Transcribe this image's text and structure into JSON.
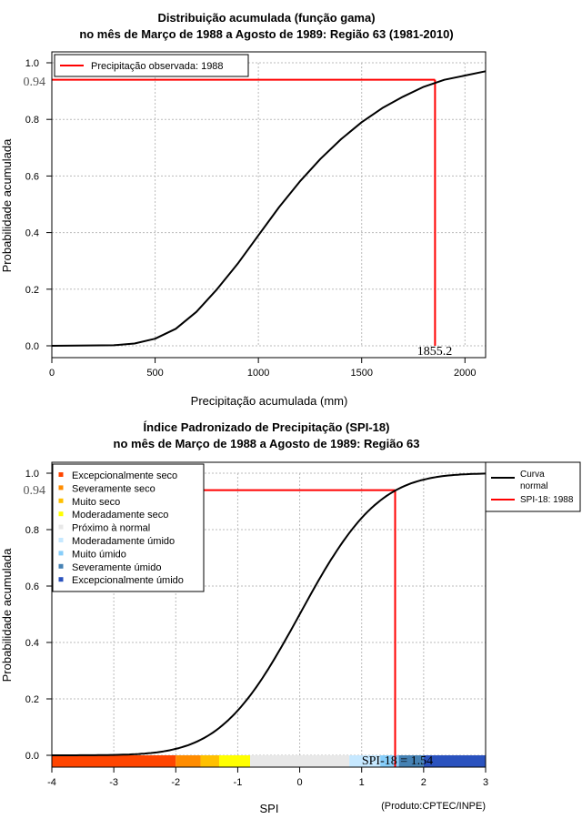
{
  "chart_data": [
    {
      "type": "line",
      "title_line1": "Distribuição acumulada (função gama)",
      "title_line2": "no mês de Março de 1988 a Agosto de 1989: Região 63 (1981-2010)",
      "xlabel": "Precipitação acumulada (mm)",
      "ylabel": "Probabilidade acumulada",
      "xlim": [
        0,
        2100
      ],
      "ylim": [
        0,
        1.0
      ],
      "xticks": [
        0,
        500,
        1000,
        1500,
        2000
      ],
      "yticks": [
        0.0,
        0.2,
        0.4,
        0.6,
        0.8,
        1.0
      ],
      "xtick_labels": [
        "0",
        "500",
        "1000",
        "1500",
        "2000"
      ],
      "ytick_labels": [
        "0.0",
        "0.2",
        "0.4",
        "0.6",
        "0.8",
        "1.0"
      ],
      "grid": true,
      "legend_position": "top-left",
      "legend_entries": [
        "Precipitação observada: 1988"
      ],
      "curve": {
        "name": "gamma-cdf",
        "x": [
          0,
          300,
          400,
          500,
          600,
          700,
          800,
          900,
          1000,
          1100,
          1200,
          1300,
          1400,
          1500,
          1600,
          1700,
          1800,
          1900,
          2000,
          2100
        ],
        "y": [
          0.0,
          0.002,
          0.008,
          0.025,
          0.06,
          0.12,
          0.2,
          0.29,
          0.39,
          0.49,
          0.58,
          0.66,
          0.73,
          0.79,
          0.84,
          0.88,
          0.915,
          0.94,
          0.955,
          0.97
        ]
      },
      "observed_value": 1855.2,
      "observed_value_label": "1855.2",
      "observed_probability": 0.94,
      "observed_probability_label": "0.94"
    },
    {
      "type": "line",
      "title_line1": "Índice Padronizado de Precipitação (SPI-18)",
      "title_line2": "no mês de Março de 1988 a Agosto de 1989: Região 63",
      "xlabel": "SPI",
      "ylabel": "Probabilidade acumulada",
      "xlim": [
        -4,
        3
      ],
      "ylim": [
        0,
        1.0
      ],
      "xticks": [
        -4,
        -3,
        -2,
        -1,
        0,
        1,
        2,
        3
      ],
      "yticks": [
        0.0,
        0.2,
        0.4,
        0.6,
        0.8,
        1.0
      ],
      "xtick_labels": [
        "-4",
        "-3",
        "-2",
        "-1",
        "0",
        "1",
        "2",
        "3"
      ],
      "ytick_labels": [
        "0.0",
        "0.2",
        "0.4",
        "0.6",
        "0.8",
        "1.0"
      ],
      "grid": true,
      "legend_position": "top-left",
      "legend_entries": [
        {
          "label": "Excepcionalmente seco",
          "color": "#ff4500"
        },
        {
          "label": "Severamente seco",
          "color": "#ff8c00"
        },
        {
          "label": "Muito seco",
          "color": "#ffc000"
        },
        {
          "label": "Moderadamente seco",
          "color": "#ffff00"
        },
        {
          "label": "Próximo à normal",
          "color": "#e8e8e8"
        },
        {
          "label": "Moderadamente úmido",
          "color": "#c6e8ff"
        },
        {
          "label": "Muito úmido",
          "color": "#87cefa"
        },
        {
          "label": "Severamente úmido",
          "color": "#4682b4"
        },
        {
          "label": "Excepcionalmente úmido",
          "color": "#2a52be"
        }
      ],
      "legend2_position": "outside-top-right",
      "legend2_entries": [
        {
          "label_line1": "Curva",
          "label_line2": "normal"
        },
        {
          "label_line1": "SPI-18: 1988"
        }
      ],
      "class_bands": [
        {
          "from": -4.0,
          "to": -2.0,
          "color": "#ff4500"
        },
        {
          "from": -2.0,
          "to": -1.6,
          "color": "#ff8c00"
        },
        {
          "from": -1.6,
          "to": -1.3,
          "color": "#ffc000"
        },
        {
          "from": -1.3,
          "to": -0.8,
          "color": "#ffff00"
        },
        {
          "from": -0.8,
          "to": 0.8,
          "color": "#e8e8e8"
        },
        {
          "from": 0.8,
          "to": 1.3,
          "color": "#c6e8ff"
        },
        {
          "from": 1.3,
          "to": 1.6,
          "color": "#87cefa"
        },
        {
          "from": 1.6,
          "to": 2.0,
          "color": "#4682b4"
        },
        {
          "from": 2.0,
          "to": 3.0,
          "color": "#2a52be"
        }
      ],
      "curve": {
        "name": "normal-cdf",
        "from": -4,
        "to": 3
      },
      "spi_value": 1.54,
      "spi_label": "SPI-18 = 1.54",
      "observed_probability": 0.94,
      "observed_probability_label": "0.94",
      "credit": "(Produto:CPTEC/INPE)"
    }
  ],
  "colors": {
    "curve": "#000000",
    "marker": "#ff0000",
    "grid": "#bbbbbb",
    "big_label": "#555555"
  }
}
